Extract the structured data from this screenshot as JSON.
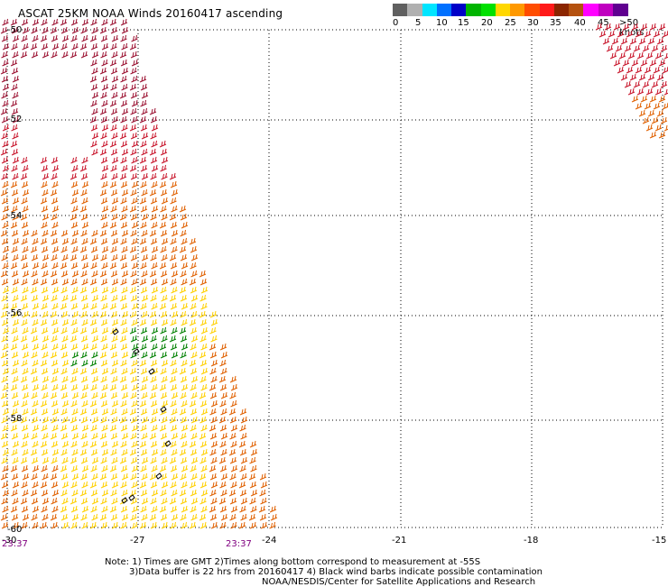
{
  "title": "ASCAT 25KM NOAA Winds 20160417 ascending",
  "legend": {
    "colors": [
      "#606060",
      "#b0b0b0",
      "#00e5ff",
      "#0070ff",
      "#0000c8",
      "#00b400",
      "#00e000",
      "#ffd700",
      "#ff9900",
      "#ff4d00",
      "#ff1a1a",
      "#8b2500",
      "#b4510f",
      "#ff00ff",
      "#c000c0",
      "#600090"
    ],
    "ticks": [
      "0",
      "5",
      "10",
      "15",
      "20",
      "25",
      "30",
      "35",
      "40",
      "45",
      ">50 knots"
    ]
  },
  "lon_labels": [
    "-30",
    "-27",
    "-24",
    "-21",
    "-18",
    "-15"
  ],
  "lat_labels": [
    "-50",
    "-52",
    "-54",
    "-56",
    "-58",
    "-60"
  ],
  "time_labels": [
    "23:37",
    "23:37"
  ],
  "notes": [
    "Note: 1) Times are GMT 2)Times along bottom correspond to measurement at -55S",
    "3)Data buffer is 22 hrs from 20160417 4) Black wind barbs indicate possible contamination",
    "NOAA/NESDIS/Center for Satellite Applications and Research"
  ],
  "colors": {
    "grid": "#000000",
    "red": "#c8142a",
    "dark_red": "#9b1030",
    "orange": "#e06000",
    "yellow": "#ffd000",
    "green": "#008000",
    "black": "#000000"
  }
}
